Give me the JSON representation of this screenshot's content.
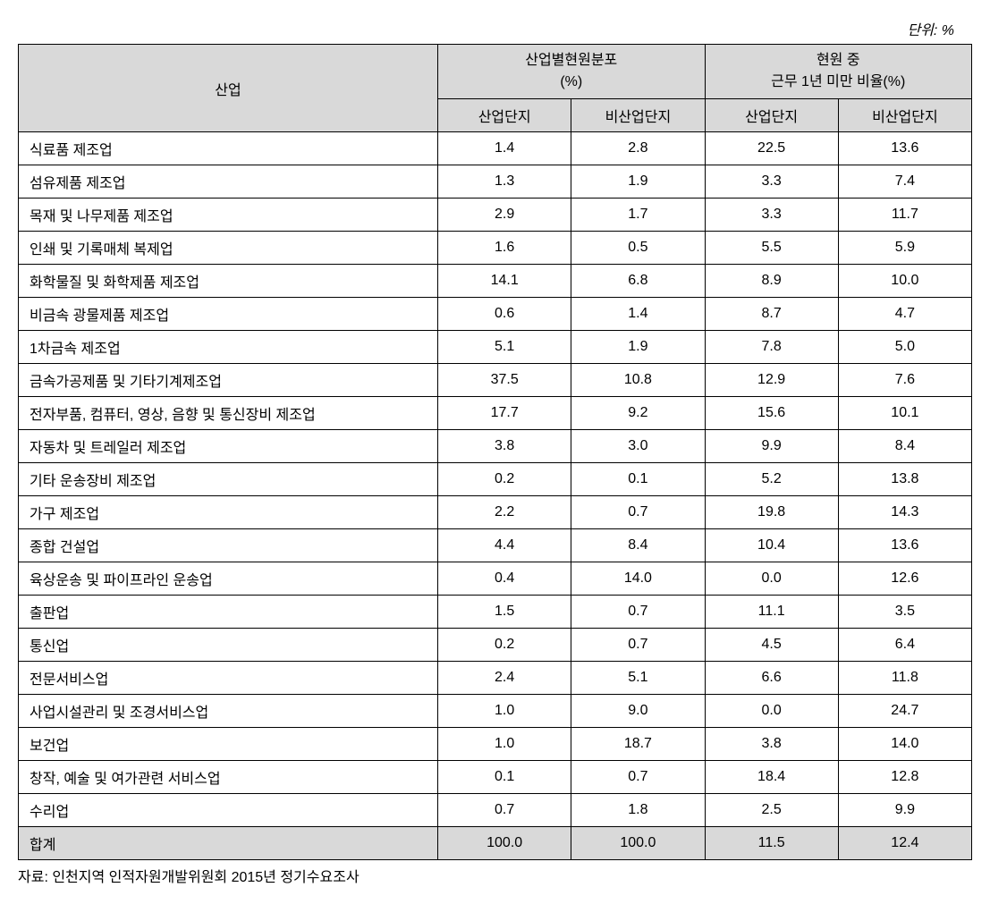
{
  "unit_label": "단위: %",
  "headers": {
    "industry": "산업",
    "group1_line1": "산업별현원분포",
    "group1_line2": "(%)",
    "group2_line1": "현원 중",
    "group2_line2": "근무 1년 미만 비율(%)",
    "sub1": "산업단지",
    "sub2": "비산업단지",
    "sub3": "산업단지",
    "sub4": "비산업단지"
  },
  "rows": [
    {
      "name": "식료품 제조업",
      "v1": "1.4",
      "v2": "2.8",
      "v3": "22.5",
      "v4": "13.6"
    },
    {
      "name": "섬유제품 제조업",
      "v1": "1.3",
      "v2": "1.9",
      "v3": "3.3",
      "v4": "7.4"
    },
    {
      "name": "목재 및 나무제품 제조업",
      "v1": "2.9",
      "v2": "1.7",
      "v3": "3.3",
      "v4": "11.7"
    },
    {
      "name": "인쇄 및 기록매체 복제업",
      "v1": "1.6",
      "v2": "0.5",
      "v3": "5.5",
      "v4": "5.9"
    },
    {
      "name": "화학물질 및 화학제품 제조업",
      "v1": "14.1",
      "v2": "6.8",
      "v3": "8.9",
      "v4": "10.0"
    },
    {
      "name": "비금속 광물제품 제조업",
      "v1": "0.6",
      "v2": "1.4",
      "v3": "8.7",
      "v4": "4.7"
    },
    {
      "name": "1차금속 제조업",
      "v1": "5.1",
      "v2": "1.9",
      "v3": "7.8",
      "v4": "5.0"
    },
    {
      "name": "금속가공제품 및 기타기계제조업",
      "v1": "37.5",
      "v2": "10.8",
      "v3": "12.9",
      "v4": "7.6"
    },
    {
      "name": "전자부품, 컴퓨터, 영상, 음향 및 통신장비 제조업",
      "v1": "17.7",
      "v2": "9.2",
      "v3": "15.6",
      "v4": "10.1"
    },
    {
      "name": "자동차 및 트레일러 제조업",
      "v1": "3.8",
      "v2": "3.0",
      "v3": "9.9",
      "v4": "8.4"
    },
    {
      "name": "기타 운송장비 제조업",
      "v1": "0.2",
      "v2": "0.1",
      "v3": "5.2",
      "v4": "13.8"
    },
    {
      "name": "가구 제조업",
      "v1": "2.2",
      "v2": "0.7",
      "v3": "19.8",
      "v4": "14.3"
    },
    {
      "name": "종합 건설업",
      "v1": "4.4",
      "v2": "8.4",
      "v3": "10.4",
      "v4": "13.6"
    },
    {
      "name": "육상운송 및 파이프라인 운송업",
      "v1": "0.4",
      "v2": "14.0",
      "v3": "0.0",
      "v4": "12.6"
    },
    {
      "name": "출판업",
      "v1": "1.5",
      "v2": "0.7",
      "v3": "11.1",
      "v4": "3.5"
    },
    {
      "name": "통신업",
      "v1": "0.2",
      "v2": "0.7",
      "v3": "4.5",
      "v4": "6.4"
    },
    {
      "name": "전문서비스업",
      "v1": "2.4",
      "v2": "5.1",
      "v3": "6.6",
      "v4": "11.8"
    },
    {
      "name": "사업시설관리 및 조경서비스업",
      "v1": "1.0",
      "v2": "9.0",
      "v3": "0.0",
      "v4": "24.7"
    },
    {
      "name": "보건업",
      "v1": "1.0",
      "v2": "18.7",
      "v3": "3.8",
      "v4": "14.0"
    },
    {
      "name": "창작, 예술 및 여가관련 서비스업",
      "v1": "0.1",
      "v2": "0.7",
      "v3": "18.4",
      "v4": "12.8"
    },
    {
      "name": "수리업",
      "v1": "0.7",
      "v2": "1.8",
      "v3": "2.5",
      "v4": "9.9"
    }
  ],
  "total_row": {
    "name": "합계",
    "v1": "100.0",
    "v2": "100.0",
    "v3": "11.5",
    "v4": "12.4"
  },
  "source_note": "자료: 인천지역 인적자원개발위원회 2015년 정기수요조사",
  "styling": {
    "header_bg": "#d9d9d9",
    "border_color": "#000000",
    "body_bg": "#ffffff",
    "text_color": "#000000",
    "font_size": 16,
    "cell_padding": "6px 10px"
  }
}
